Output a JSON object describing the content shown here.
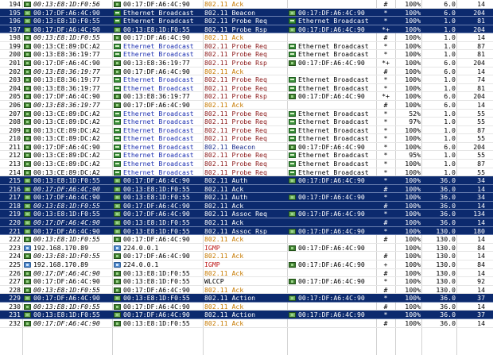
{
  "colors": {
    "selected_row": "#0c2a6e",
    "ack": "#c77a00",
    "probe": "#8c1a1a",
    "broadcast": "#1c2fb0",
    "igmp": "#c02020"
  },
  "rows": [
    {
      "num": "194",
      "src": "00:13:E8:1D:F0:56",
      "src_style": "it",
      "src_icon": "dev",
      "dst": "00:17:DF:A6:4C:90",
      "dst_style": "black",
      "dst_icon": "dev",
      "proto": "802.11 Ack",
      "proto_style": "ack",
      "rcv": "",
      "rcv_icon": "",
      "flag": "#",
      "flag_style": "pound",
      "signal": "100%",
      "rate": "6.0",
      "size": "14",
      "sel": false
    },
    {
      "num": "195",
      "src": "00:17:DF:A6:4C:90",
      "src_style": "black",
      "src_icon": "dev",
      "dst": "Ethernet Broadcast",
      "dst_style": "blue",
      "dst_icon": "bc",
      "proto": "802.11 Beacon",
      "proto_style": "navy",
      "rcv": "00:17:DF:A6:4C:90",
      "rcv_icon": "dev",
      "flag": "*",
      "flag_style": "star",
      "signal": "100%",
      "rate": "6.0",
      "size": "204",
      "sel": true
    },
    {
      "num": "196",
      "src": "00:13:E8:1D:F0:55",
      "src_style": "black",
      "src_icon": "dev",
      "dst": "Ethernet Broadcast",
      "dst_style": "blue",
      "dst_icon": "bc",
      "proto": "802.11 Probe Req",
      "proto_style": "probe",
      "rcv": "Ethernet Broadcast",
      "rcv_icon": "bc",
      "flag": "*",
      "flag_style": "star",
      "signal": "100%",
      "rate": "1.0",
      "size": "81",
      "sel": true
    },
    {
      "num": "197",
      "src": "00:17:DF:A6:4C:90",
      "src_style": "black",
      "src_icon": "dev",
      "dst": "00:13:E8:1D:F0:55",
      "dst_style": "black",
      "dst_icon": "dev",
      "proto": "802.11 Probe Rsp",
      "proto_style": "probe",
      "rcv": "00:17:DF:A6:4C:90",
      "rcv_icon": "dev",
      "flag": "*+",
      "flag_style": "star",
      "signal": "100%",
      "rate": "1.0",
      "size": "204",
      "sel": true
    },
    {
      "num": "198",
      "src": "00:13:E8:1D:F0:55",
      "src_style": "it",
      "src_icon": "dev",
      "dst": "00:17:DF:A6:4C:90",
      "dst_style": "black",
      "dst_icon": "dev",
      "proto": "802.11 Ack",
      "proto_style": "ack",
      "rcv": "",
      "rcv_icon": "",
      "flag": "#",
      "flag_style": "pound",
      "signal": "100%",
      "rate": "1.0",
      "size": "14",
      "sel": false
    },
    {
      "num": "199",
      "src": "00:13:CE:89:DC:A2",
      "src_style": "black",
      "src_icon": "dev",
      "dst": "Ethernet Broadcast",
      "dst_style": "blue",
      "dst_icon": "bc",
      "proto": "802.11 Probe Req",
      "proto_style": "probe",
      "rcv": "Ethernet Broadcast",
      "rcv_icon": "bc",
      "flag": "*",
      "flag_style": "star",
      "signal": "100%",
      "rate": "1.0",
      "size": "87",
      "sel": false
    },
    {
      "num": "200",
      "src": "00:13:E8:36:19:77",
      "src_style": "black",
      "src_icon": "dev",
      "dst": "Ethernet Broadcast",
      "dst_style": "blue",
      "dst_icon": "bc",
      "proto": "802.11 Probe Req",
      "proto_style": "probe",
      "rcv": "Ethernet Broadcast",
      "rcv_icon": "bc",
      "flag": "*",
      "flag_style": "star",
      "signal": "100%",
      "rate": "1.0",
      "size": "81",
      "sel": false
    },
    {
      "num": "201",
      "src": "00:17:DF:A6:4C:90",
      "src_style": "black",
      "src_icon": "dev",
      "dst": "00:13:E8:36:19:77",
      "dst_style": "black",
      "dst_icon": "dev",
      "proto": "802.11 Probe Rsp",
      "proto_style": "probe",
      "rcv": "00:17:DF:A6:4C:90",
      "rcv_icon": "dev",
      "flag": "*+",
      "flag_style": "plus",
      "signal": "100%",
      "rate": "6.0",
      "size": "204",
      "sel": false
    },
    {
      "num": "202",
      "src": "00:13:E8:36:19:77",
      "src_style": "it",
      "src_icon": "dev",
      "dst": "00:17:DF:A6:4C:90",
      "dst_style": "black",
      "dst_icon": "dev",
      "proto": "802.11 Ack",
      "proto_style": "ack",
      "rcv": "",
      "rcv_icon": "",
      "flag": "#",
      "flag_style": "pound",
      "signal": "100%",
      "rate": "6.0",
      "size": "14",
      "sel": false
    },
    {
      "num": "203",
      "src": "00:13:E8:36:19:77",
      "src_style": "black",
      "src_icon": "dev",
      "dst": "Ethernet Broadcast",
      "dst_style": "blue",
      "dst_icon": "bc",
      "proto": "802.11 Probe Req",
      "proto_style": "probe",
      "rcv": "Ethernet Broadcast",
      "rcv_icon": "bc",
      "flag": "*",
      "flag_style": "star",
      "signal": "100%",
      "rate": "1.0",
      "size": "74",
      "sel": false
    },
    {
      "num": "204",
      "src": "00:13:E8:36:19:77",
      "src_style": "black",
      "src_icon": "dev",
      "dst": "Ethernet Broadcast",
      "dst_style": "blue",
      "dst_icon": "bc",
      "proto": "802.11 Probe Req",
      "proto_style": "probe",
      "rcv": "Ethernet Broadcast",
      "rcv_icon": "bc",
      "flag": "*",
      "flag_style": "star",
      "signal": "100%",
      "rate": "1.0",
      "size": "81",
      "sel": false
    },
    {
      "num": "205",
      "src": "00:17:DF:A6:4C:90",
      "src_style": "black",
      "src_icon": "dev",
      "dst": "00:13:E8:36:19:77",
      "dst_style": "black",
      "dst_icon": "dev",
      "proto": "802.11 Probe Rsp",
      "proto_style": "probe",
      "rcv": "00:17:DF:A6:4C:90",
      "rcv_icon": "dev",
      "flag": "*+",
      "flag_style": "plus",
      "signal": "100%",
      "rate": "6.0",
      "size": "204",
      "sel": false
    },
    {
      "num": "206",
      "src": "00:13:E8:36:19:77",
      "src_style": "it",
      "src_icon": "dev",
      "dst": "00:17:DF:A6:4C:90",
      "dst_style": "black",
      "dst_icon": "dev",
      "proto": "802.11 Ack",
      "proto_style": "ack",
      "rcv": "",
      "rcv_icon": "",
      "flag": "#",
      "flag_style": "pound",
      "signal": "100%",
      "rate": "6.0",
      "size": "14",
      "sel": false
    },
    {
      "num": "207",
      "src": "00:13:CE:89:DC:A2",
      "src_style": "black",
      "src_icon": "dev",
      "dst": "Ethernet Broadcast",
      "dst_style": "blue",
      "dst_icon": "bc",
      "proto": "802.11 Probe Req",
      "proto_style": "probe",
      "rcv": "Ethernet Broadcast",
      "rcv_icon": "bc",
      "flag": "*",
      "flag_style": "star",
      "signal": "52%",
      "rate": "1.0",
      "size": "55",
      "sel": false
    },
    {
      "num": "208",
      "src": "00:13:CE:89:DC:A2",
      "src_style": "black",
      "src_icon": "dev",
      "dst": "Ethernet Broadcast",
      "dst_style": "blue",
      "dst_icon": "bc",
      "proto": "802.11 Probe Req",
      "proto_style": "probe",
      "rcv": "Ethernet Broadcast",
      "rcv_icon": "bc",
      "flag": "*",
      "flag_style": "star",
      "signal": "97%",
      "rate": "1.0",
      "size": "55",
      "sel": false
    },
    {
      "num": "209",
      "src": "00:13:CE:89:DC:A2",
      "src_style": "black",
      "src_icon": "dev",
      "dst": "Ethernet Broadcast",
      "dst_style": "blue",
      "dst_icon": "bc",
      "proto": "802.11 Probe Req",
      "proto_style": "probe",
      "rcv": "Ethernet Broadcast",
      "rcv_icon": "bc",
      "flag": "*",
      "flag_style": "star",
      "signal": "100%",
      "rate": "1.0",
      "size": "87",
      "sel": false
    },
    {
      "num": "210",
      "src": "00:13:CE:89:DC:A2",
      "src_style": "black",
      "src_icon": "dev",
      "dst": "Ethernet Broadcast",
      "dst_style": "blue",
      "dst_icon": "bc",
      "proto": "802.11 Probe Req",
      "proto_style": "probe",
      "rcv": "Ethernet Broadcast",
      "rcv_icon": "bc",
      "flag": "*",
      "flag_style": "star",
      "signal": "100%",
      "rate": "1.0",
      "size": "55",
      "sel": false
    },
    {
      "num": "211",
      "src": "00:17:DF:A6:4C:90",
      "src_style": "black",
      "src_icon": "dev",
      "dst": "Ethernet Broadcast",
      "dst_style": "blue",
      "dst_icon": "bc",
      "proto": "802.11 Beacon",
      "proto_style": "navy",
      "rcv": "00:17:DF:A6:4C:90",
      "rcv_icon": "dev",
      "flag": "*",
      "flag_style": "star",
      "signal": "100%",
      "rate": "6.0",
      "size": "204",
      "sel": false
    },
    {
      "num": "212",
      "src": "00:13:CE:89:DC:A2",
      "src_style": "black",
      "src_icon": "dev",
      "dst": "Ethernet Broadcast",
      "dst_style": "blue",
      "dst_icon": "bc",
      "proto": "802.11 Probe Req",
      "proto_style": "probe",
      "rcv": "Ethernet Broadcast",
      "rcv_icon": "bc",
      "flag": "*",
      "flag_style": "star",
      "signal": "95%",
      "rate": "1.0",
      "size": "55",
      "sel": false
    },
    {
      "num": "213",
      "src": "00:13:CE:89:DC:A2",
      "src_style": "black",
      "src_icon": "dev",
      "dst": "Ethernet Broadcast",
      "dst_style": "blue",
      "dst_icon": "bc",
      "proto": "802.11 Probe Req",
      "proto_style": "probe",
      "rcv": "Ethernet Broadcast",
      "rcv_icon": "bc",
      "flag": "*",
      "flag_style": "star",
      "signal": "100%",
      "rate": "1.0",
      "size": "87",
      "sel": false
    },
    {
      "num": "214",
      "src": "00:13:CE:89:DC:A2",
      "src_style": "black",
      "src_icon": "dev",
      "dst": "Ethernet Broadcast",
      "dst_style": "blue",
      "dst_icon": "bc",
      "proto": "802.11 Probe Req",
      "proto_style": "probe",
      "rcv": "Ethernet Broadcast",
      "rcv_icon": "bc",
      "flag": "*",
      "flag_style": "star",
      "signal": "100%",
      "rate": "1.0",
      "size": "55",
      "sel": false
    },
    {
      "num": "215",
      "src": "00:13:E8:1D:F0:55",
      "src_style": "black",
      "src_icon": "dev",
      "dst": "00:17:DF:A6:4C:90",
      "dst_style": "black",
      "dst_icon": "dev",
      "proto": "802.11 Auth",
      "proto_style": "navy",
      "rcv": "00:17:DF:A6:4C:90",
      "rcv_icon": "dev",
      "flag": "*",
      "flag_style": "star",
      "signal": "100%",
      "rate": "36.0",
      "size": "34",
      "sel": true
    },
    {
      "num": "216",
      "src": "00:17:DF:A6:4C:90",
      "src_style": "it",
      "src_icon": "dev",
      "dst": "00:13:E8:1D:F0:55",
      "dst_style": "black",
      "dst_icon": "dev",
      "proto": "802.11 Ack",
      "proto_style": "ack",
      "rcv": "",
      "rcv_icon": "",
      "flag": "#",
      "flag_style": "pound",
      "signal": "100%",
      "rate": "36.0",
      "size": "14",
      "sel": true
    },
    {
      "num": "217",
      "src": "00:17:DF:A6:4C:90",
      "src_style": "black",
      "src_icon": "dev",
      "dst": "00:13:E8:1D:F0:55",
      "dst_style": "black",
      "dst_icon": "dev",
      "proto": "802.11 Auth",
      "proto_style": "navy",
      "rcv": "00:17:DF:A6:4C:90",
      "rcv_icon": "dev",
      "flag": "*",
      "flag_style": "star",
      "signal": "100%",
      "rate": "36.0",
      "size": "34",
      "sel": true
    },
    {
      "num": "218",
      "src": "00:13:E8:1D:F0:55",
      "src_style": "it",
      "src_icon": "dev",
      "dst": "00:17:DF:A6:4C:90",
      "dst_style": "black",
      "dst_icon": "dev",
      "proto": "802.11 Ack",
      "proto_style": "ack",
      "rcv": "",
      "rcv_icon": "",
      "flag": "#",
      "flag_style": "pound",
      "signal": "100%",
      "rate": "36.0",
      "size": "14",
      "sel": true
    },
    {
      "num": "219",
      "src": "00:13:E8:1D:F0:55",
      "src_style": "black",
      "src_icon": "dev",
      "dst": "00:17:DF:A6:4C:90",
      "dst_style": "black",
      "dst_icon": "dev",
      "proto": "802.11 Assoc Req",
      "proto_style": "navy",
      "rcv": "00:17:DF:A6:4C:90",
      "rcv_icon": "dev",
      "flag": "*",
      "flag_style": "star",
      "signal": "100%",
      "rate": "36.0",
      "size": "134",
      "sel": true
    },
    {
      "num": "220",
      "src": "00:17:DF:A6:4C:90",
      "src_style": "it",
      "src_icon": "dev",
      "dst": "00:13:E8:1D:F0:55",
      "dst_style": "black",
      "dst_icon": "dev",
      "proto": "802.11 Ack",
      "proto_style": "ack",
      "rcv": "",
      "rcv_icon": "",
      "flag": "#",
      "flag_style": "pound",
      "signal": "100%",
      "rate": "36.0",
      "size": "14",
      "sel": true
    },
    {
      "num": "221",
      "src": "00:17:DF:A6:4C:90",
      "src_style": "black",
      "src_icon": "dev",
      "dst": "00:13:E8:1D:F0:55",
      "dst_style": "black",
      "dst_icon": "dev",
      "proto": "802.11 Assoc Rsp",
      "proto_style": "navy",
      "rcv": "00:17:DF:A6:4C:90",
      "rcv_icon": "dev",
      "flag": "*",
      "flag_style": "star",
      "signal": "100%",
      "rate": "130.0",
      "size": "180",
      "sel": true
    },
    {
      "num": "222",
      "src": "00:13:E8:1D:F0:55",
      "src_style": "it",
      "src_icon": "dev",
      "dst": "00:17:DF:A6:4C:90",
      "dst_style": "black",
      "dst_icon": "dev",
      "proto": "802.11 Ack",
      "proto_style": "ack",
      "rcv": "",
      "rcv_icon": "",
      "flag": "#",
      "flag_style": "pound",
      "signal": "100%",
      "rate": "130.0",
      "size": "14",
      "sel": false
    },
    {
      "num": "223",
      "src": "192.168.170.89",
      "src_style": "black",
      "src_icon": "pc",
      "dst": "224.0.0.1",
      "dst_style": "black",
      "dst_icon": "pc",
      "proto": "IGMP",
      "proto_style": "igmp",
      "rcv": "00:17:DF:A6:4C:90",
      "rcv_icon": "dev",
      "flag": "",
      "flag_style": "star",
      "signal": "100%",
      "rate": "130.0",
      "size": "84",
      "sel": false
    },
    {
      "num": "224",
      "src": "00:13:E8:1D:F0:55",
      "src_style": "it",
      "src_icon": "dev",
      "dst": "00:17:DF:A6:4C:90",
      "dst_style": "black",
      "dst_icon": "dev",
      "proto": "802.11 Ack",
      "proto_style": "ack",
      "rcv": "",
      "rcv_icon": "",
      "flag": "#",
      "flag_style": "pound",
      "signal": "100%",
      "rate": "130.0",
      "size": "14",
      "sel": false
    },
    {
      "num": "225",
      "src": "192.168.170.89",
      "src_style": "black",
      "src_icon": "pc",
      "dst": "224.0.0.1",
      "dst_style": "black",
      "dst_icon": "pc",
      "proto": "IGMP",
      "proto_style": "igmp",
      "rcv": "00:17:DF:A6:4C:90",
      "rcv_icon": "dev",
      "flag": "+",
      "flag_style": "plus",
      "signal": "100%",
      "rate": "130.0",
      "size": "84",
      "sel": false
    },
    {
      "num": "226",
      "src": "00:17:DF:A6:4C:90",
      "src_style": "it",
      "src_icon": "dev",
      "dst": "00:13:E8:1D:F0:55",
      "dst_style": "black",
      "dst_icon": "dev",
      "proto": "802.11 Ack",
      "proto_style": "ack",
      "rcv": "",
      "rcv_icon": "",
      "flag": "#",
      "flag_style": "pound",
      "signal": "100%",
      "rate": "130.0",
      "size": "14",
      "sel": false
    },
    {
      "num": "227",
      "src": "00:17:DF:A6:4C:90",
      "src_style": "black",
      "src_icon": "dev",
      "dst": "00:13:E8:1D:F0:55",
      "dst_style": "black",
      "dst_icon": "dev",
      "proto": "WLCCP",
      "proto_style": "wlccp",
      "rcv": "00:17:DF:A6:4C:90",
      "rcv_icon": "dev",
      "flag": "*",
      "flag_style": "star",
      "signal": "100%",
      "rate": "130.0",
      "size": "92",
      "sel": false
    },
    {
      "num": "228",
      "src": "00:13:E8:1D:F0:55",
      "src_style": "it",
      "src_icon": "dev",
      "dst": "00:17:DF:A6:4C:90",
      "dst_style": "black",
      "dst_icon": "dev",
      "proto": "802.11 Ack",
      "proto_style": "ack",
      "rcv": "",
      "rcv_icon": "",
      "flag": "#",
      "flag_style": "pound",
      "signal": "100%",
      "rate": "130.0",
      "size": "14",
      "sel": false
    },
    {
      "num": "229",
      "src": "00:17:DF:A6:4C:90",
      "src_style": "black",
      "src_icon": "dev",
      "dst": "00:13:E8:1D:F0:55",
      "dst_style": "black",
      "dst_icon": "dev",
      "proto": "802.11 Action",
      "proto_style": "navy",
      "rcv": "00:17:DF:A6:4C:90",
      "rcv_icon": "dev",
      "flag": "*",
      "flag_style": "star",
      "signal": "100%",
      "rate": "36.0",
      "size": "37",
      "sel": true
    },
    {
      "num": "230",
      "src": "00:13:E8:1D:F0:55",
      "src_style": "it",
      "src_icon": "dev",
      "dst": "00:17:DF:A6:4C:90",
      "dst_style": "black",
      "dst_icon": "dev",
      "proto": "802.11 Ack",
      "proto_style": "ack",
      "rcv": "",
      "rcv_icon": "",
      "flag": "#",
      "flag_style": "pound",
      "signal": "100%",
      "rate": "36.0",
      "size": "14",
      "sel": false
    },
    {
      "num": "231",
      "src": "00:13:E8:1D:F0:55",
      "src_style": "black",
      "src_icon": "dev",
      "dst": "00:17:DF:A6:4C:90",
      "dst_style": "black",
      "dst_icon": "dev",
      "proto": "802.11 Action",
      "proto_style": "navy",
      "rcv": "00:17:DF:A6:4C:90",
      "rcv_icon": "dev",
      "flag": "*",
      "flag_style": "star",
      "signal": "100%",
      "rate": "36.0",
      "size": "37",
      "sel": true
    },
    {
      "num": "232",
      "src": "00:17:DF:A6:4C:90",
      "src_style": "it",
      "src_icon": "dev",
      "dst": "00:13:E8:1D:F0:55",
      "dst_style": "black",
      "dst_icon": "dev",
      "proto": "802.11 Ack",
      "proto_style": "ack",
      "rcv": "",
      "rcv_icon": "",
      "flag": "#",
      "flag_style": "pound",
      "signal": "100%",
      "rate": "36.0",
      "size": "14",
      "sel": false
    }
  ]
}
